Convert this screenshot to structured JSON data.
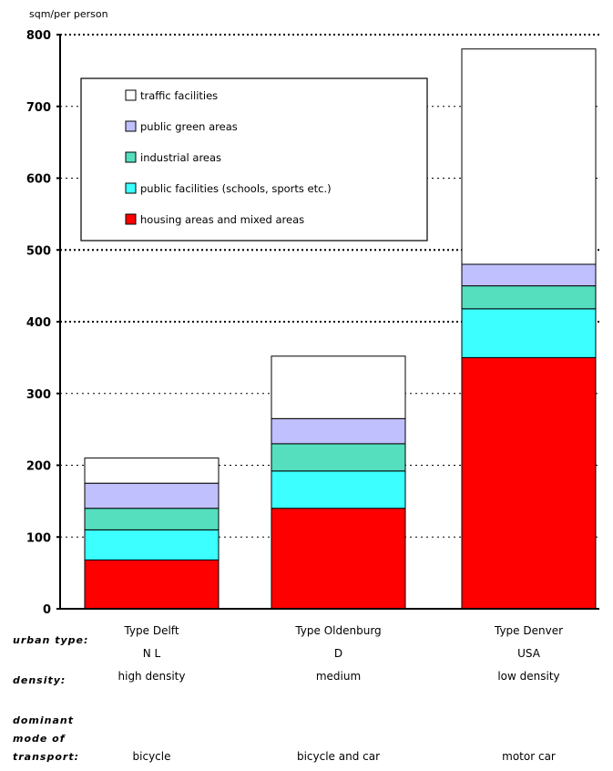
{
  "chart_data": {
    "type": "bar",
    "stacked": true,
    "ylabel": "sqm/per person",
    "ylim": [
      0,
      800
    ],
    "yticks": [
      0,
      100,
      200,
      300,
      400,
      500,
      600,
      700,
      800
    ],
    "grid": true,
    "legend_position": "top-left",
    "categories": [
      "Type Delft",
      "Type Oldenburg",
      "Type Denver"
    ],
    "series": [
      {
        "name": "housing areas and mixed areas",
        "color": "#ff0000",
        "values": [
          68,
          140,
          350
        ]
      },
      {
        "name": "public facilities (schools, sports etc.)",
        "color": "#3cffff",
        "values": [
          42,
          52,
          68
        ]
      },
      {
        "name": "industrial areas",
        "color": "#55dfbf",
        "values": [
          30,
          38,
          32
        ]
      },
      {
        "name": "public green areas",
        "color": "#c0c0ff",
        "values": [
          35,
          35,
          30
        ]
      },
      {
        "name": "traffic facilities",
        "color": "#ffffff",
        "values": [
          35,
          87,
          300
        ]
      }
    ],
    "legend_order": [
      4,
      3,
      2,
      1,
      0
    ],
    "row_labels": {
      "urban_type": "urban type:",
      "density": "density:",
      "transport_1": "dominant",
      "transport_2": "mode of",
      "transport_3": "transport:"
    },
    "countries": [
      "N L",
      "D",
      "USA"
    ],
    "densities": [
      "high density",
      "medium",
      "low density"
    ],
    "transport_modes": [
      "bicycle",
      "bicycle and car",
      "motor car"
    ]
  }
}
